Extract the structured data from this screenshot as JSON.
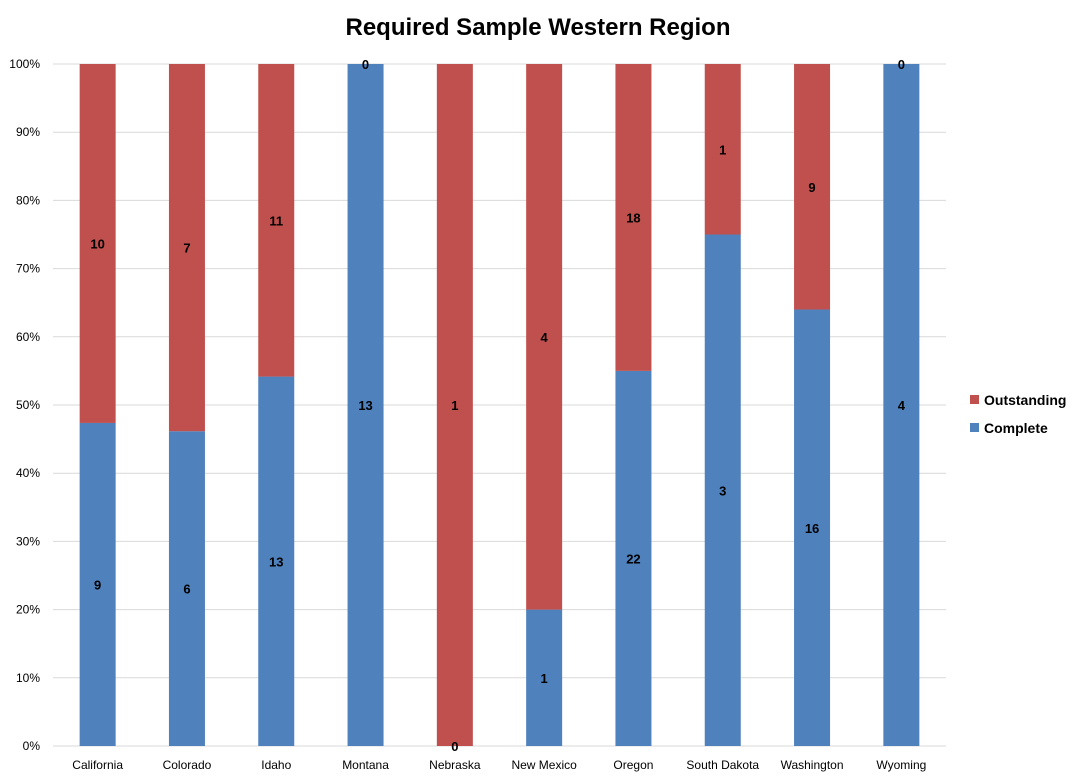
{
  "chart_data": {
    "type": "bar",
    "stacked": "percent",
    "title": "Required Sample Western Region",
    "xlabel": "",
    "ylabel": "",
    "ylim": [
      0,
      100
    ],
    "y_ticks": [
      "0%",
      "10%",
      "20%",
      "30%",
      "40%",
      "50%",
      "60%",
      "70%",
      "80%",
      "90%",
      "100%"
    ],
    "grid": true,
    "legend_position": "right",
    "categories": [
      "California",
      "Colorado",
      "Idaho",
      "Montana",
      "Nebraska",
      "New Mexico",
      "Oregon",
      "South Dakota",
      "Washington",
      "Wyoming"
    ],
    "series": [
      {
        "name": "Complete",
        "color": "#4f81bd",
        "values": [
          9,
          6,
          13,
          13,
          0,
          1,
          22,
          3,
          16,
          4
        ]
      },
      {
        "name": "Outstanding",
        "color": "#c0504d",
        "values": [
          10,
          7,
          11,
          0,
          1,
          4,
          18,
          1,
          9,
          0
        ]
      }
    ]
  }
}
